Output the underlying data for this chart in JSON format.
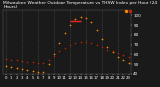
{
  "title": "Milwaukee Weather Outdoor Temperature vs THSW Index per Hour (24 Hours)",
  "title_fontsize": 3.2,
  "background_color": "#1a1a1a",
  "plot_bg_color": "#1a1a1a",
  "grid_color": "#555555",
  "hours": [
    0,
    1,
    2,
    3,
    4,
    5,
    6,
    7,
    8,
    9,
    10,
    11,
    12,
    13,
    14,
    15,
    16,
    17,
    18,
    19,
    20,
    21,
    22,
    23
  ],
  "temp_values": [
    55,
    54,
    54,
    53,
    52,
    52,
    51,
    51,
    54,
    58,
    63,
    67,
    70,
    72,
    73,
    73,
    72,
    70,
    68,
    65,
    63,
    61,
    59,
    57
  ],
  "thsw_values": [
    48,
    47,
    46,
    45,
    44,
    43,
    42,
    42,
    50,
    60,
    72,
    82,
    90,
    96,
    98,
    97,
    93,
    85,
    76,
    68,
    62,
    57,
    54,
    51
  ],
  "thsw_color": "#ff8800",
  "temp_color": "#cc2200",
  "highlight_color": "#ff2222",
  "highlight_hours": [
    12,
    13,
    14
  ],
  "ylim": [
    40,
    105
  ],
  "ytick_values": [
    40,
    50,
    60,
    70,
    80,
    90,
    100
  ],
  "ytick_fontsize": 3.0,
  "xtick_fontsize": 2.8,
  "vgrid_positions": [
    0,
    3,
    6,
    9,
    12,
    15,
    18,
    21
  ]
}
